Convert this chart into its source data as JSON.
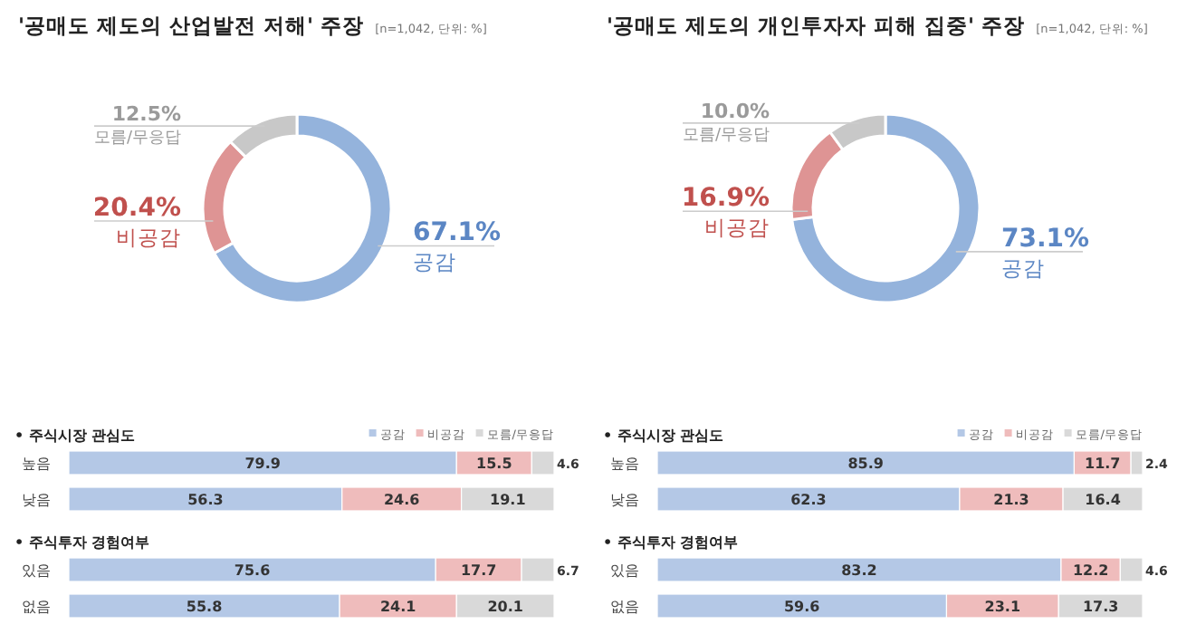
{
  "chart_data": [
    {
      "type": "donut",
      "title": "'공매도 제도의 산업발전 저해' 주장",
      "subtitle": "[n=1,042, 단위: %]",
      "categories": [
        "공감",
        "비공감",
        "모름/무응답"
      ],
      "values": [
        67.1,
        20.4,
        12.5
      ],
      "colors": [
        "#94b3dc",
        "#de9494",
        "#c8c8c8"
      ],
      "value_labels": [
        "67.1%",
        "20.4%",
        "12.5%"
      ]
    },
    {
      "type": "donut",
      "title": "'공매도 제도의 개인투자자 피해 집중' 주장",
      "subtitle": "[n=1,042, 단위: %]",
      "categories": [
        "공감",
        "비공감",
        "모름/무응답"
      ],
      "values": [
        73.1,
        16.9,
        10.0
      ],
      "colors": [
        "#94b3dc",
        "#de9494",
        "#c8c8c8"
      ],
      "value_labels": [
        "73.1%",
        "16.9%",
        "10.0%"
      ]
    },
    {
      "type": "bar",
      "orientation": "horizontal",
      "stacked": true,
      "title": "• 주식시장 관심도",
      "categories": [
        "높음",
        "낮음"
      ],
      "data_labels": true,
      "legend": "top right",
      "series": [
        {
          "name": "공감",
          "color": "#b4c8e6",
          "values": [
            79.9,
            56.3
          ]
        },
        {
          "name": "비공감",
          "color": "#efbcbc",
          "values": [
            15.5,
            24.6
          ]
        },
        {
          "name": "모름/무응답",
          "color": "#d9d9d9",
          "values": [
            4.6,
            19.1
          ]
        }
      ]
    },
    {
      "type": "bar",
      "orientation": "horizontal",
      "stacked": true,
      "title": "• 주식시장 관심도",
      "categories": [
        "높음",
        "낮음"
      ],
      "data_labels": true,
      "legend": "top right",
      "series": [
        {
          "name": "공감",
          "color": "#b4c8e6",
          "values": [
            85.9,
            62.3
          ]
        },
        {
          "name": "비공감",
          "color": "#efbcbc",
          "values": [
            11.7,
            21.3
          ]
        },
        {
          "name": "모름/무응답",
          "color": "#d9d9d9",
          "values": [
            2.4,
            16.4
          ]
        }
      ]
    },
    {
      "type": "bar",
      "orientation": "horizontal",
      "stacked": true,
      "title": "• 주식투자 경험여부",
      "categories": [
        "있음",
        "없음"
      ],
      "data_labels": true,
      "series": [
        {
          "color": "#b4c8e6",
          "values": [
            75.6,
            55.8
          ]
        },
        {
          "color": "#efbcbc",
          "values": [
            17.7,
            24.1
          ]
        },
        {
          "color": "#d9d9d9",
          "values": [
            6.7,
            20.1
          ]
        }
      ]
    },
    {
      "type": "bar",
      "orientation": "horizontal",
      "stacked": true,
      "title": "• 주식투자 경험여부",
      "categories": [
        "있음",
        "없음"
      ],
      "data_labels": true,
      "series": [
        {
          "color": "#b4c8e6",
          "values": [
            83.2,
            59.6
          ]
        },
        {
          "color": "#efbcbc",
          "values": [
            12.2,
            23.1
          ]
        },
        {
          "color": "#d9d9d9",
          "values": [
            4.6,
            17.3
          ]
        }
      ]
    }
  ]
}
